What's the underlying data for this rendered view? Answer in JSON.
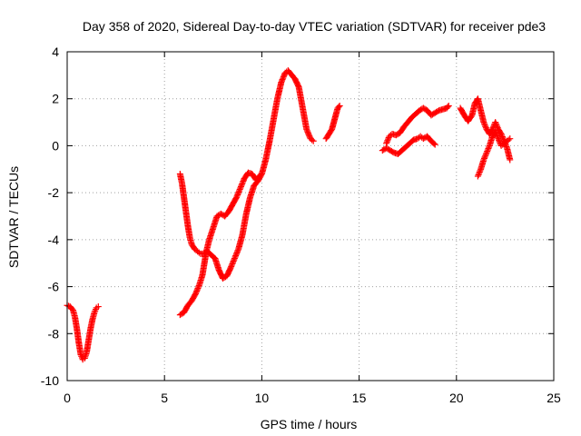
{
  "chart_data": {
    "type": "scatter",
    "title": "Day 358 of 2020, Sidereal Day-to-day VTEC variation (SDTVAR) for receiver pde3",
    "xlabel": "GPS time / hours",
    "ylabel": "SDTVAR / TECUs",
    "xlim": [
      0,
      25
    ],
    "ylim": [
      -10,
      4
    ],
    "xticks": [
      0,
      5,
      10,
      15,
      20,
      25
    ],
    "yticks": [
      -10,
      -8,
      -6,
      -4,
      -2,
      0,
      2,
      4
    ],
    "grid": true,
    "legend": "none",
    "marker": "+",
    "marker_color": "#ff0000",
    "series": [
      {
        "segments": [
          [
            [
              0.0,
              -6.8
            ],
            [
              0.15,
              -6.85
            ],
            [
              0.3,
              -7.0
            ],
            [
              0.4,
              -7.3
            ],
            [
              0.5,
              -7.8
            ],
            [
              0.6,
              -8.4
            ],
            [
              0.7,
              -8.9
            ],
            [
              0.8,
              -9.1
            ],
            [
              0.9,
              -9.05
            ],
            [
              1.0,
              -8.8
            ],
            [
              1.1,
              -8.3
            ],
            [
              1.2,
              -7.8
            ],
            [
              1.3,
              -7.4
            ],
            [
              1.4,
              -7.1
            ],
            [
              1.5,
              -6.9
            ],
            [
              1.6,
              -6.85
            ]
          ],
          [
            [
              5.8,
              -7.2
            ],
            [
              6.0,
              -7.1
            ],
            [
              6.2,
              -6.8
            ],
            [
              6.4,
              -6.6
            ],
            [
              6.6,
              -6.3
            ],
            [
              6.8,
              -5.9
            ],
            [
              6.95,
              -5.5
            ],
            [
              7.05,
              -5.0
            ],
            [
              7.15,
              -4.5
            ],
            [
              7.3,
              -4.0
            ],
            [
              7.5,
              -3.5
            ],
            [
              7.7,
              -3.0
            ],
            [
              7.9,
              -2.9
            ],
            [
              8.1,
              -3.0
            ],
            [
              8.3,
              -2.8
            ],
            [
              8.5,
              -2.5
            ],
            [
              8.7,
              -2.2
            ],
            [
              8.9,
              -1.8
            ],
            [
              9.1,
              -1.4
            ],
            [
              9.3,
              -1.15
            ],
            [
              9.5,
              -1.2
            ],
            [
              9.7,
              -1.45
            ],
            [
              9.85,
              -1.3
            ]
          ],
          [
            [
              5.8,
              -1.2
            ],
            [
              5.9,
              -1.6
            ],
            [
              6.0,
              -2.2
            ],
            [
              6.1,
              -2.8
            ],
            [
              6.2,
              -3.4
            ],
            [
              6.3,
              -3.9
            ],
            [
              6.4,
              -4.2
            ],
            [
              6.55,
              -4.4
            ],
            [
              6.7,
              -4.5
            ],
            [
              6.85,
              -4.6
            ],
            [
              7.0,
              -4.6
            ],
            [
              7.2,
              -4.5
            ],
            [
              7.4,
              -4.65
            ],
            [
              7.6,
              -4.8
            ],
            [
              7.8,
              -5.3
            ],
            [
              8.0,
              -5.65
            ],
            [
              8.2,
              -5.55
            ],
            [
              8.4,
              -5.2
            ],
            [
              8.6,
              -4.8
            ],
            [
              8.8,
              -4.4
            ],
            [
              9.0,
              -3.8
            ],
            [
              9.2,
              -2.9
            ],
            [
              9.4,
              -2.2
            ],
            [
              9.6,
              -1.7
            ],
            [
              9.8,
              -1.5
            ],
            [
              10.0,
              -1.2
            ],
            [
              10.2,
              -0.6
            ],
            [
              10.4,
              0.2
            ],
            [
              10.6,
              1.1
            ],
            [
              10.8,
              2.0
            ],
            [
              11.0,
              2.7
            ],
            [
              11.2,
              3.1
            ],
            [
              11.35,
              3.2
            ],
            [
              11.5,
              3.05
            ],
            [
              11.7,
              2.85
            ],
            [
              11.9,
              2.5
            ],
            [
              12.1,
              1.6
            ],
            [
              12.3,
              0.7
            ],
            [
              12.5,
              0.3
            ],
            [
              12.65,
              0.2
            ]
          ],
          [
            [
              13.3,
              0.3
            ],
            [
              13.45,
              0.5
            ],
            [
              13.6,
              0.7
            ],
            [
              13.9,
              1.6
            ],
            [
              14.0,
              1.7
            ]
          ],
          [
            [
              16.2,
              -0.2
            ],
            [
              16.4,
              -0.1
            ],
            [
              16.6,
              -0.2
            ],
            [
              16.8,
              -0.3
            ],
            [
              17.0,
              -0.35
            ],
            [
              17.2,
              -0.2
            ],
            [
              17.4,
              -0.05
            ],
            [
              17.6,
              0.1
            ],
            [
              17.8,
              0.25
            ],
            [
              18.0,
              0.3
            ],
            [
              18.15,
              0.4
            ],
            [
              18.3,
              0.3
            ],
            [
              18.5,
              0.4
            ],
            [
              18.7,
              0.2
            ],
            [
              18.9,
              0.05
            ]
          ],
          [
            [
              16.4,
              0.1
            ],
            [
              16.55,
              0.4
            ],
            [
              16.7,
              0.5
            ],
            [
              16.9,
              0.45
            ],
            [
              17.1,
              0.55
            ],
            [
              17.3,
              0.8
            ],
            [
              17.5,
              1.0
            ],
            [
              17.7,
              1.2
            ],
            [
              17.9,
              1.35
            ],
            [
              18.1,
              1.5
            ],
            [
              18.3,
              1.6
            ],
            [
              18.5,
              1.5
            ],
            [
              18.7,
              1.3
            ],
            [
              18.9,
              1.4
            ],
            [
              19.1,
              1.5
            ],
            [
              19.3,
              1.55
            ],
            [
              19.5,
              1.6
            ],
            [
              19.6,
              1.7
            ]
          ],
          [
            [
              20.2,
              1.6
            ],
            [
              20.4,
              1.3
            ],
            [
              20.6,
              1.05
            ],
            [
              20.8,
              1.3
            ],
            [
              20.95,
              1.8
            ],
            [
              21.1,
              2.0
            ],
            [
              21.25,
              1.5
            ],
            [
              21.4,
              1.0
            ],
            [
              21.55,
              0.7
            ],
            [
              21.7,
              0.5
            ],
            [
              21.85,
              0.7
            ],
            [
              22.0,
              1.0
            ],
            [
              22.15,
              0.7
            ],
            [
              22.3,
              0.5
            ],
            [
              22.45,
              0.2
            ],
            [
              22.6,
              -0.1
            ],
            [
              22.75,
              -0.6
            ]
          ],
          [
            [
              21.1,
              -1.3
            ],
            [
              21.25,
              -1.0
            ],
            [
              21.4,
              -0.6
            ],
            [
              21.55,
              -0.3
            ],
            [
              21.7,
              0.0
            ],
            [
              21.85,
              0.4
            ],
            [
              22.0,
              0.6
            ],
            [
              22.15,
              0.3
            ],
            [
              22.3,
              0.0
            ],
            [
              22.45,
              0.1
            ],
            [
              22.6,
              0.2
            ],
            [
              22.75,
              0.3
            ]
          ]
        ]
      }
    ]
  }
}
